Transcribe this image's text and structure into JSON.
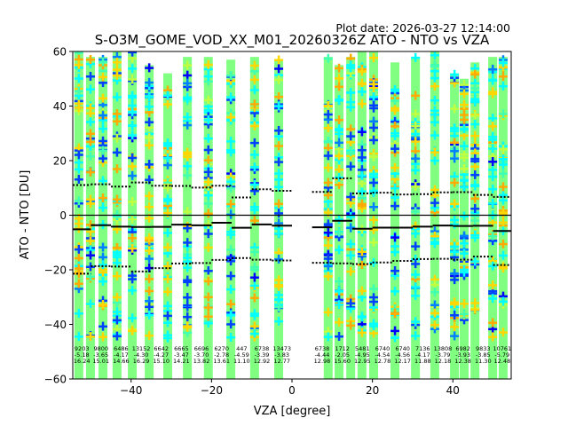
{
  "plot_date": "Plot date: 2026-03-27 12:14:00",
  "chart_data": {
    "type": "scatter",
    "title": "S-O3M_GOME_VOD_XX_M01_20260326Z ATO - NTO vs VZA",
    "xlabel": "VZA [degree]",
    "ylabel": "ATO - NTO [DU]",
    "xlim": [
      -54.5,
      54.5
    ],
    "ylim": [
      -60,
      60
    ],
    "xticks": [
      -40,
      -20,
      0,
      20,
      40
    ],
    "yticks": [
      -60,
      -40,
      -20,
      0,
      20,
      40,
      60
    ],
    "grid": false,
    "colors": {
      "base": "#80ff80",
      "markers": [
        "#00ffff",
        "#ffd700",
        "#0040ff",
        "#ffaa00",
        "#40ffb0",
        "#c0ff40",
        "#0080ff",
        "#0000ff"
      ]
    },
    "scatter_columns_vza": [
      -53,
      -50.1,
      -47,
      -43.5,
      -39.7,
      -35.5,
      -30.9,
      -26,
      -20.8,
      -15.2,
      -9.3,
      -3.3,
      9,
      11.7,
      14.6,
      17.4,
      20.3,
      25.6,
      30.7,
      35.5,
      40.4,
      42.8,
      45.5,
      49.9,
      52.5
    ],
    "column_top": [
      60,
      58,
      58,
      60,
      60,
      55,
      52,
      58,
      58,
      57,
      58,
      57,
      58,
      55,
      58,
      60,
      60,
      56,
      58,
      60,
      52,
      50,
      56,
      58,
      58
    ],
    "bins": [
      {
        "range": [
          -54.5,
          -50
        ],
        "count": "9203",
        "mean": -5.18,
        "std": 16.24
      },
      {
        "range": [
          -50,
          -45
        ],
        "count": "9800",
        "mean": -3.65,
        "std": 15.01
      },
      {
        "range": [
          -45,
          -40
        ],
        "count": "6486",
        "mean": -4.17,
        "std": 14.66
      },
      {
        "range": [
          -40,
          -35
        ],
        "count": "13152",
        "mean": -4.3,
        "std": 16.29
      },
      {
        "range": [
          -35,
          -30
        ],
        "count": "6642",
        "mean": -4.27,
        "std": 15.1
      },
      {
        "range": [
          -30,
          -25
        ],
        "count": "6665",
        "mean": -3.47,
        "std": 14.21
      },
      {
        "range": [
          -25,
          -20
        ],
        "count": "6696",
        "mean": -3.7,
        "std": 13.82
      },
      {
        "range": [
          -20,
          -15
        ],
        "count": "6270",
        "mean": -2.78,
        "std": 13.61
      },
      {
        "range": [
          -15,
          -10
        ],
        "count": "447",
        "mean": -4.59,
        "std": 11.1
      },
      {
        "range": [
          -10,
          -5
        ],
        "count": "6738",
        "mean": -3.39,
        "std": 12.92
      },
      {
        "range": [
          -5,
          0
        ],
        "count": "13473",
        "mean": -3.83,
        "std": 12.77
      },
      {
        "range": [
          5,
          10
        ],
        "count": "6738",
        "mean": -4.44,
        "std": 12.98
      },
      {
        "range": [
          10,
          15
        ],
        "count": "1712",
        "mean": -2.05,
        "std": 15.6
      },
      {
        "range": [
          15,
          20
        ],
        "count": "5481",
        "mean": -4.95,
        "std": 12.95
      },
      {
        "range": [
          20,
          25
        ],
        "count": "6740",
        "mean": -4.54,
        "std": 12.78
      },
      {
        "range": [
          25,
          30
        ],
        "count": "6740",
        "mean": -4.56,
        "std": 12.17
      },
      {
        "range": [
          30,
          35
        ],
        "count": "7136",
        "mean": -4.17,
        "std": 11.88
      },
      {
        "range": [
          35,
          40
        ],
        "count": "13808",
        "mean": -3.79,
        "std": 12.18
      },
      {
        "range": [
          40,
          45
        ],
        "count": "6982",
        "mean": -3.93,
        "std": 12.38
      },
      {
        "range": [
          45,
          50
        ],
        "count": "9833",
        "mean": -3.85,
        "std": 11.3
      },
      {
        "range": [
          50,
          54.5
        ],
        "count": "10761",
        "mean": -5.79,
        "std": 12.48
      }
    ]
  }
}
